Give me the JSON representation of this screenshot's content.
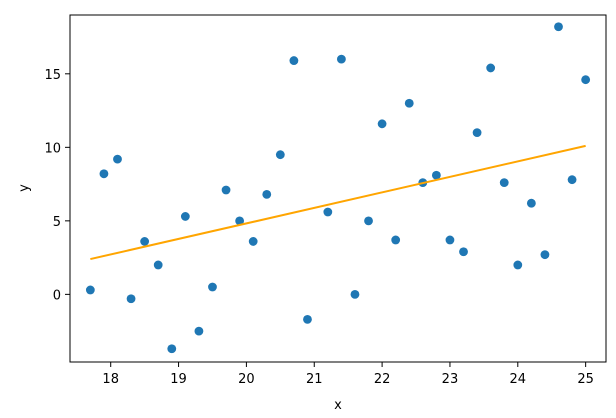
{
  "chart_data": {
    "type": "scatter",
    "title": "",
    "xlabel": "x",
    "ylabel": "y",
    "xlim": [
      17.4,
      25.3
    ],
    "ylim": [
      -4.6,
      19.0
    ],
    "xticks": [
      18,
      19,
      20,
      21,
      22,
      23,
      24,
      25
    ],
    "yticks": [
      0,
      5,
      10,
      15
    ],
    "grid": false,
    "colors": {
      "points": "#1f77b4",
      "line": "#ffa500",
      "axis": "#000000"
    },
    "series": [
      {
        "type": "scatter",
        "x": [
          17.7,
          17.9,
          18.1,
          18.3,
          18.5,
          18.7,
          18.9,
          19.1,
          19.3,
          19.5,
          19.7,
          19.9,
          20.1,
          20.3,
          20.5,
          20.7,
          20.9,
          21.2,
          21.4,
          21.6,
          21.8,
          22.0,
          22.2,
          22.4,
          22.6,
          22.8,
          23.0,
          23.2,
          23.4,
          23.6,
          23.8,
          24.0,
          24.2,
          24.4,
          24.6,
          24.8,
          25.0
        ],
        "y": [
          0.3,
          8.2,
          9.2,
          -0.3,
          3.6,
          2.0,
          -3.7,
          5.3,
          -2.5,
          0.5,
          7.1,
          5.0,
          3.6,
          6.8,
          9.5,
          15.9,
          -1.7,
          5.6,
          16.0,
          0.0,
          5.0,
          11.6,
          3.7,
          13.0,
          7.6,
          8.1,
          3.7,
          2.9,
          11.0,
          15.4,
          7.6,
          2.0,
          6.2,
          2.7,
          18.2,
          7.8,
          14.6
        ]
      },
      {
        "type": "line",
        "x": [
          17.7,
          25.0
        ],
        "y": [
          2.4,
          10.1
        ]
      }
    ]
  }
}
